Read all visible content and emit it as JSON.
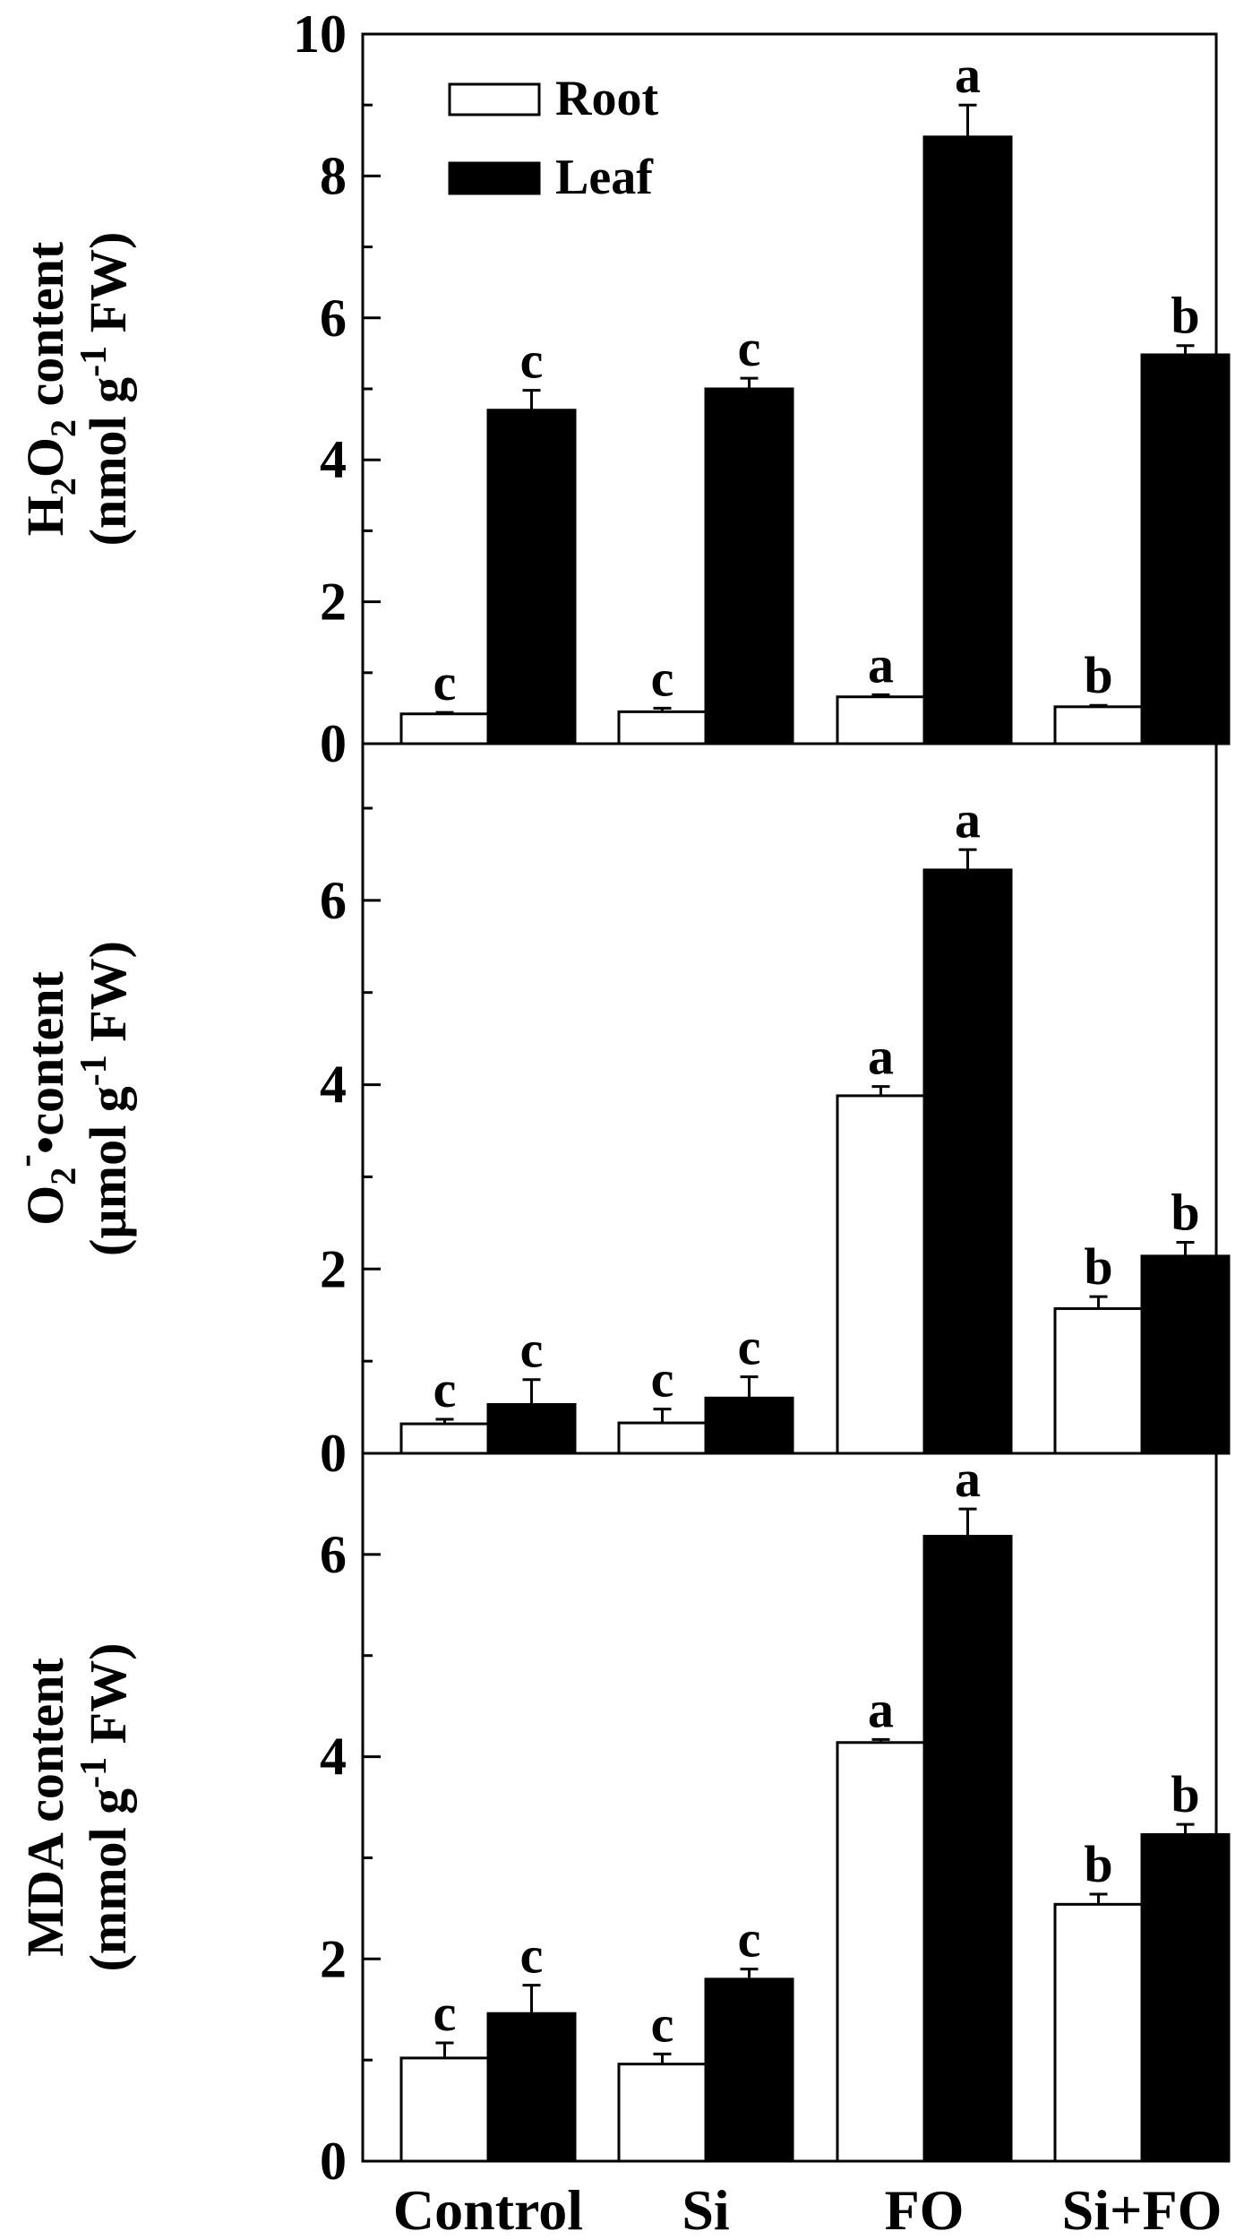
{
  "chart_data": [
    {
      "type": "bar",
      "panel": "top",
      "categories": [
        "Control",
        "Si",
        "FO",
        "Si+FO"
      ],
      "ylabel_parts": {
        "chem_h": "H",
        "chem_h_sub": "2",
        "chem_o": "O",
        "chem_o_sub": "2",
        "word": "content",
        "unit_left": "(nmol g",
        "unit_sup": "-1",
        "unit_right": "FW)"
      },
      "ylim": [
        0,
        10
      ],
      "yticks": [
        0,
        2,
        4,
        6,
        8,
        10
      ],
      "series": [
        {
          "name": "Root",
          "color": "#ffffff",
          "values": [
            0.42,
            0.45,
            0.66,
            0.52
          ],
          "errors": [
            0.02,
            0.05,
            0.03,
            0.02
          ],
          "letters": [
            "c",
            "c",
            "a",
            "b"
          ]
        },
        {
          "name": "Leaf",
          "color": "#000000",
          "values": [
            4.7,
            5.0,
            8.55,
            5.48
          ],
          "errors": [
            0.28,
            0.15,
            0.45,
            0.13
          ],
          "letters": [
            "c",
            "c",
            "a",
            "b"
          ]
        }
      ],
      "legend": {
        "position": "top-left"
      }
    },
    {
      "type": "bar",
      "panel": "middle",
      "categories": [
        "Control",
        "Si",
        "FO",
        "Si+FO"
      ],
      "ylabel_parts": {
        "chem": "O",
        "chem_sub": "2",
        "chem_sup": "-",
        "dot": "•",
        "word": "content",
        "unit_left": "(µmol g",
        "unit_sup": "-1",
        "unit_right": "FW)"
      },
      "ylim": [
        0,
        7.7
      ],
      "yticks": [
        0,
        2,
        4,
        6
      ],
      "series": [
        {
          "name": "Root",
          "color": "#ffffff",
          "values": [
            0.32,
            0.33,
            3.88,
            1.57
          ],
          "errors": [
            0.05,
            0.15,
            0.1,
            0.13
          ],
          "letters": [
            "c",
            "c",
            "a",
            "b"
          ]
        },
        {
          "name": "Leaf",
          "color": "#000000",
          "values": [
            0.53,
            0.6,
            6.33,
            2.14
          ],
          "errors": [
            0.27,
            0.23,
            0.22,
            0.15
          ],
          "letters": [
            "c",
            "c",
            "a",
            "b"
          ]
        }
      ]
    },
    {
      "type": "bar",
      "panel": "bottom",
      "categories": [
        "Control",
        "Si",
        "FO",
        "Si+FO"
      ],
      "ylabel_parts": {
        "word": "MDA content",
        "unit_left": "(mmol g",
        "unit_sup": "-1",
        "unit_right": "FW)"
      },
      "ylim": [
        0,
        7.0
      ],
      "yticks": [
        0,
        2,
        4,
        6
      ],
      "series": [
        {
          "name": "Root",
          "color": "#ffffff",
          "values": [
            1.02,
            0.96,
            4.14,
            2.54
          ],
          "errors": [
            0.15,
            0.1,
            0.03,
            0.1
          ],
          "letters": [
            "c",
            "c",
            "a",
            "b"
          ]
        },
        {
          "name": "Leaf",
          "color": "#000000",
          "values": [
            1.46,
            1.8,
            6.18,
            3.23
          ],
          "errors": [
            0.28,
            0.1,
            0.27,
            0.1
          ],
          "letters": [
            "c",
            "c",
            "a",
            "b"
          ]
        }
      ]
    }
  ]
}
